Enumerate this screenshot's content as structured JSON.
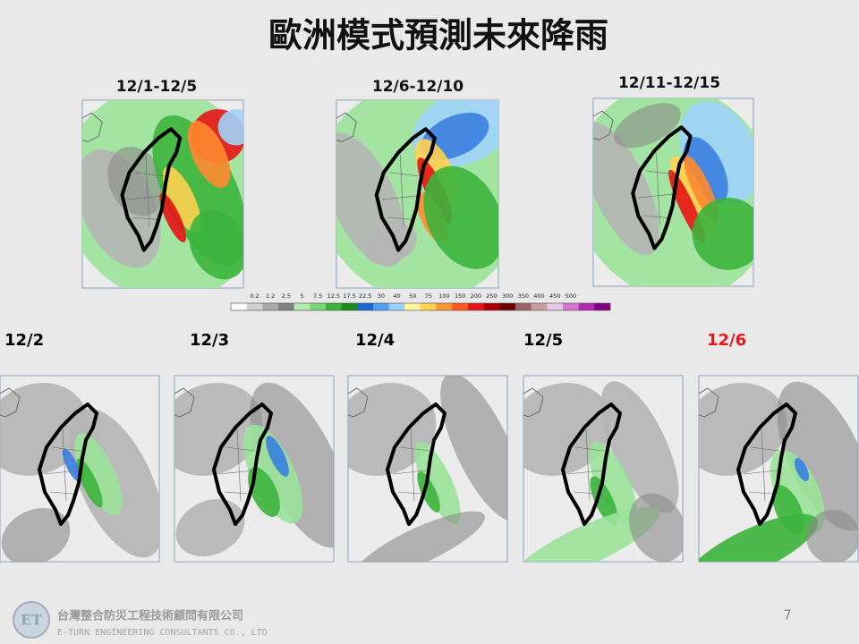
{
  "title": "歐洲模式預測未來降雨",
  "periods": [
    "12/1-12/5",
    "12/6-12/10",
    "12/11-12/15"
  ],
  "colorbar": {
    "labels": [
      0.2,
      1.2,
      2.5,
      5,
      7.5,
      12.5,
      17.5,
      22.5,
      30,
      40,
      50,
      75,
      100,
      150,
      200,
      250,
      300,
      350,
      400,
      450,
      500
    ],
    "colors": [
      "#ffffff",
      "#d2d2d2",
      "#aaaaaa",
      "#828282",
      "#b4ecb4",
      "#78d878",
      "#3cb43c",
      "#1e8c1e",
      "#1e64d2",
      "#50a0f0",
      "#96d2fa",
      "#fff59b",
      "#ffd250",
      "#ff9632",
      "#ff5a1e",
      "#e61414",
      "#aa0000",
      "#6e0000",
      "#9b6464",
      "#c8a0a0",
      "#e6c8e6",
      "#d278d2",
      "#b428b4",
      "#820082"
    ]
  },
  "days": [
    {
      "label": "12/2",
      "color": "#000000"
    },
    {
      "label": "12/3",
      "color": "#000000"
    },
    {
      "label": "12/4",
      "color": "#000000"
    },
    {
      "label": "12/5",
      "color": "#000000"
    },
    {
      "label": "12/6",
      "color": "#e8161b"
    }
  ],
  "footer": {
    "company": "台灣整合防災工程技術顧問有限公司",
    "company_en": "E-TURN ENGINEERING CONSULTANTS CO., LTD",
    "page": "7"
  }
}
